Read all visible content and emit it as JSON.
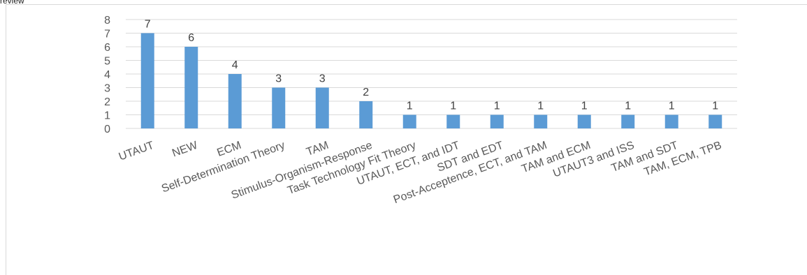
{
  "header": {
    "fragment_text": "review"
  },
  "chart_data": {
    "type": "bar",
    "title": "",
    "xlabel": "",
    "ylabel": "",
    "ylim": [
      0,
      8
    ],
    "yticks": [
      0,
      1,
      2,
      3,
      4,
      5,
      6,
      7,
      8
    ],
    "grid": true,
    "color": "#5b9bd5",
    "categories": [
      "UTAUT",
      "NEW",
      "ECM",
      "Self-Determination Theory",
      "TAM",
      "Stimulus-Organism-Response",
      "Task Technology Fit Theory",
      "UTAUT, ECT, and IDT",
      "SDT and EDT",
      "Post-Acceptence, ECT, and TAM",
      "TAM and ECM",
      "UTAUT3 and ISS",
      "TAM and SDT",
      "TAM, ECM, TPB"
    ],
    "values": [
      7,
      6,
      4,
      3,
      3,
      2,
      1,
      1,
      1,
      1,
      1,
      1,
      1,
      1
    ]
  }
}
